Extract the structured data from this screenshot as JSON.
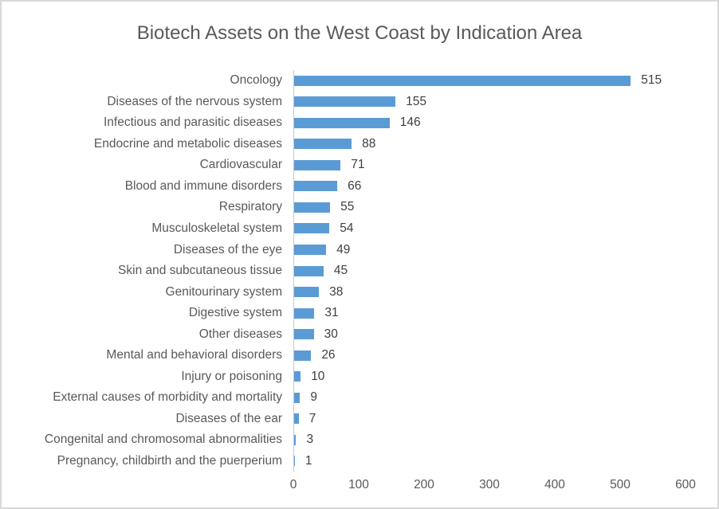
{
  "chart_data": {
    "type": "bar",
    "orientation": "horizontal",
    "title": "Biotech Assets on the West Coast by Indication Area",
    "categories": [
      "Oncology",
      "Diseases of the nervous system",
      "Infectious and parasitic diseases",
      "Endocrine and metabolic diseases",
      "Cardiovascular",
      "Blood and immune disorders",
      "Respiratory",
      "Musculoskeletal system",
      "Diseases of the eye",
      "Skin and subcutaneous tissue",
      "Genitourinary system",
      "Digestive system",
      "Other diseases",
      "Mental and behavioral disorders",
      "Injury or poisoning",
      "External causes of morbidity and mortality",
      "Diseases of the ear",
      "Congenital and chromosomal abnormalities",
      "Pregnancy, childbirth and the puerperium"
    ],
    "values": [
      515,
      155,
      146,
      88,
      71,
      66,
      55,
      54,
      49,
      45,
      38,
      31,
      30,
      26,
      10,
      9,
      7,
      3,
      1
    ],
    "xlabel": "",
    "ylabel": "",
    "xlim": [
      0,
      600
    ],
    "x_ticks": [
      0,
      100,
      200,
      300,
      400,
      500,
      600
    ],
    "grid": false,
    "data_labels": true,
    "legend": "none"
  },
  "colors": {
    "bar": "#5B9BD5",
    "title_text": "#595959",
    "label_text": "#595959",
    "value_text": "#404040",
    "axis_line": "#C9C9C9",
    "border": "#D9D9D9",
    "background": "#FFFFFF"
  }
}
